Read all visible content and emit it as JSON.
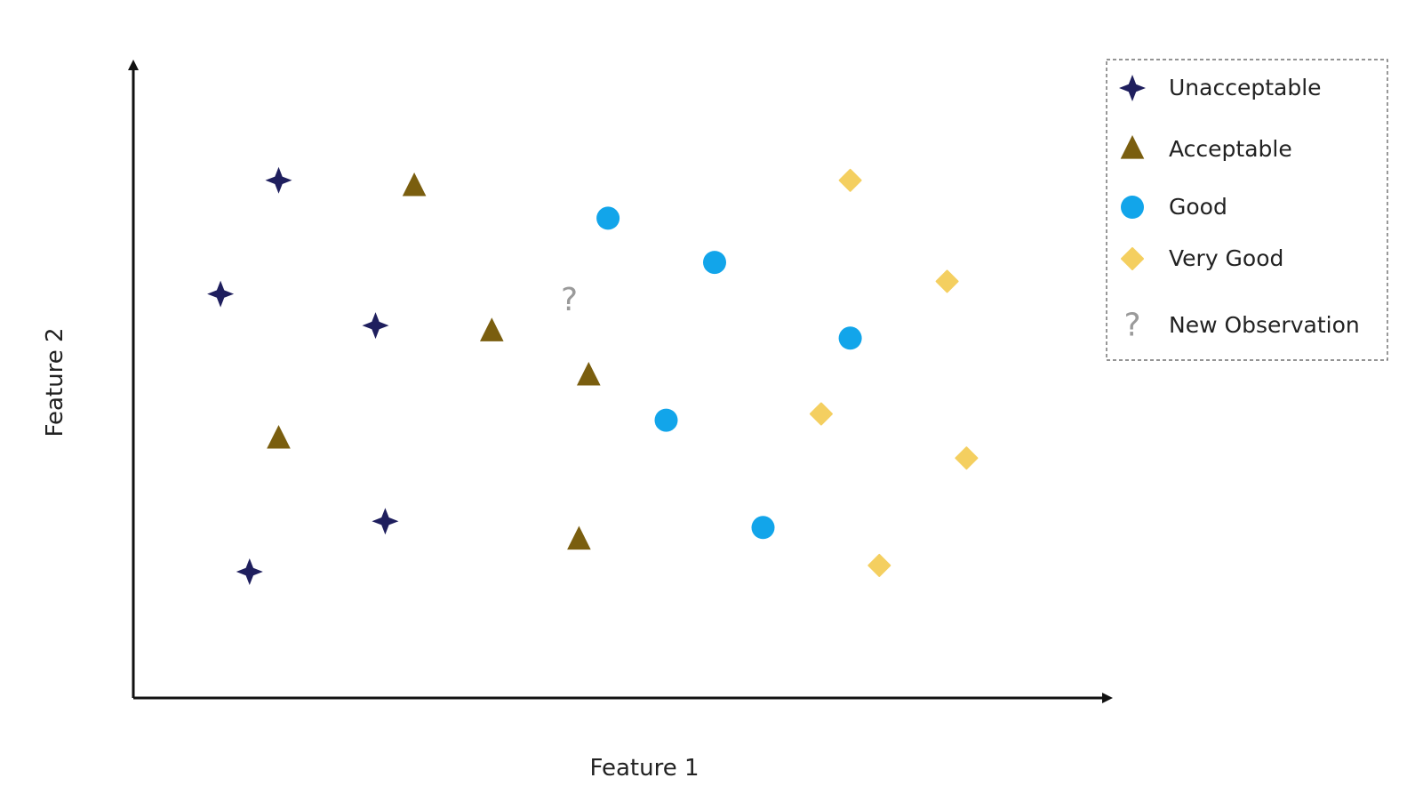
{
  "chart_data": {
    "type": "scatter",
    "title": "",
    "xlabel": "Feature 1",
    "ylabel": "Feature 2",
    "xlim": [
      0,
      100
    ],
    "ylim": [
      0,
      100
    ],
    "grid": false,
    "axis_ticks": false,
    "legend_position": "top-right",
    "legend_border": "dashed",
    "series": [
      {
        "name": "Unacceptable",
        "marker": "star4",
        "color": "#1f1f5e",
        "points": [
          {
            "x": 15,
            "y": 82
          },
          {
            "x": 9,
            "y": 64
          },
          {
            "x": 25,
            "y": 59
          },
          {
            "x": 26,
            "y": 28
          },
          {
            "x": 12,
            "y": 20
          }
        ]
      },
      {
        "name": "Acceptable",
        "marker": "triangle",
        "color": "#7a5e0f",
        "points": [
          {
            "x": 29,
            "y": 81
          },
          {
            "x": 37,
            "y": 58
          },
          {
            "x": 47,
            "y": 51
          },
          {
            "x": 15,
            "y": 41
          },
          {
            "x": 46,
            "y": 25
          }
        ]
      },
      {
        "name": "Good",
        "marker": "circle",
        "color": "#12a5ea",
        "points": [
          {
            "x": 49,
            "y": 76
          },
          {
            "x": 60,
            "y": 69
          },
          {
            "x": 74,
            "y": 57
          },
          {
            "x": 55,
            "y": 44
          },
          {
            "x": 65,
            "y": 27
          }
        ]
      },
      {
        "name": "Very Good",
        "marker": "diamond",
        "color": "#f4cf60",
        "points": [
          {
            "x": 74,
            "y": 82
          },
          {
            "x": 84,
            "y": 66
          },
          {
            "x": 71,
            "y": 45
          },
          {
            "x": 86,
            "y": 38
          },
          {
            "x": 77,
            "y": 21
          }
        ]
      },
      {
        "name": "New Observation",
        "marker": "question",
        "color": "#9a9a9a",
        "points": [
          {
            "x": 45,
            "y": 63
          }
        ]
      }
    ]
  }
}
